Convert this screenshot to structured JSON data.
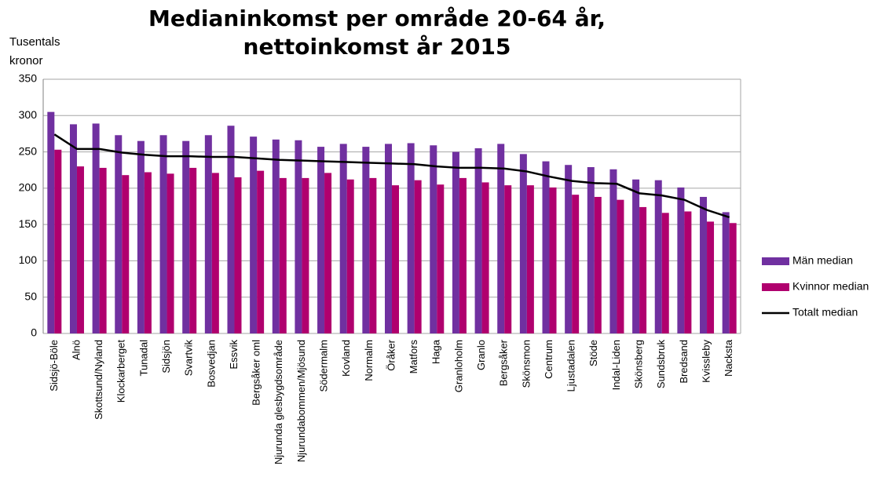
{
  "chart_data": {
    "type": "bar",
    "title": "Medianinkomst per område 20-64 år, nettoinkomst år 2015",
    "y_label": "Tusentals kronor",
    "categories": [
      "Sidsjö-Böle",
      "Alnö",
      "Skottsund/Nyland",
      "Klockarberget",
      "Tunadal",
      "Sidsjön",
      "Svartvik",
      "Bosvedjan",
      "Essvik",
      "Bergsåker oml",
      "Njurunda glesbygdsområde",
      "Njurundabommen/Mjösund",
      "Södermalm",
      "Kovland",
      "Normalm",
      "Öråker",
      "Matfors",
      "Haga",
      "Granloholm",
      "Granlo",
      "Bergsåker",
      "Skönsmon",
      "Centrum",
      "Ljustadalen",
      "Stöde",
      "Indal-Liden",
      "Skönsberg",
      "Sundsbruk",
      "Bredsand",
      "Kvissleby",
      "Nacksta"
    ],
    "series": [
      {
        "name": "Män median",
        "type": "bar",
        "color": "#7030a0",
        "values": [
          305,
          288,
          289,
          273,
          265,
          273,
          265,
          273,
          286,
          271,
          267,
          266,
          257,
          261,
          257,
          261,
          262,
          259,
          250,
          255,
          261,
          247,
          237,
          232,
          229,
          226,
          212,
          211,
          201,
          188,
          167
        ]
      },
      {
        "name": "Kvinnor median",
        "type": "bar",
        "color": "#b0006e",
        "values": [
          253,
          230,
          228,
          218,
          222,
          220,
          228,
          221,
          215,
          224,
          214,
          214,
          221,
          212,
          214,
          204,
          211,
          205,
          214,
          208,
          204,
          204,
          201,
          191,
          188,
          184,
          174,
          166,
          168,
          154,
          152
        ]
      },
      {
        "name": "Totalt median",
        "type": "line",
        "color": "#000000",
        "values": [
          274,
          254,
          254,
          249,
          246,
          244,
          244,
          243,
          243,
          241,
          239,
          238,
          237,
          236,
          235,
          234,
          233,
          230,
          228,
          228,
          227,
          223,
          216,
          210,
          207,
          206,
          193,
          190,
          184,
          170,
          160
        ]
      }
    ],
    "ylim": [
      0,
      350
    ],
    "yticks": [
      0,
      50,
      100,
      150,
      200,
      250,
      300,
      350
    ],
    "grid": true,
    "legend": "right"
  }
}
